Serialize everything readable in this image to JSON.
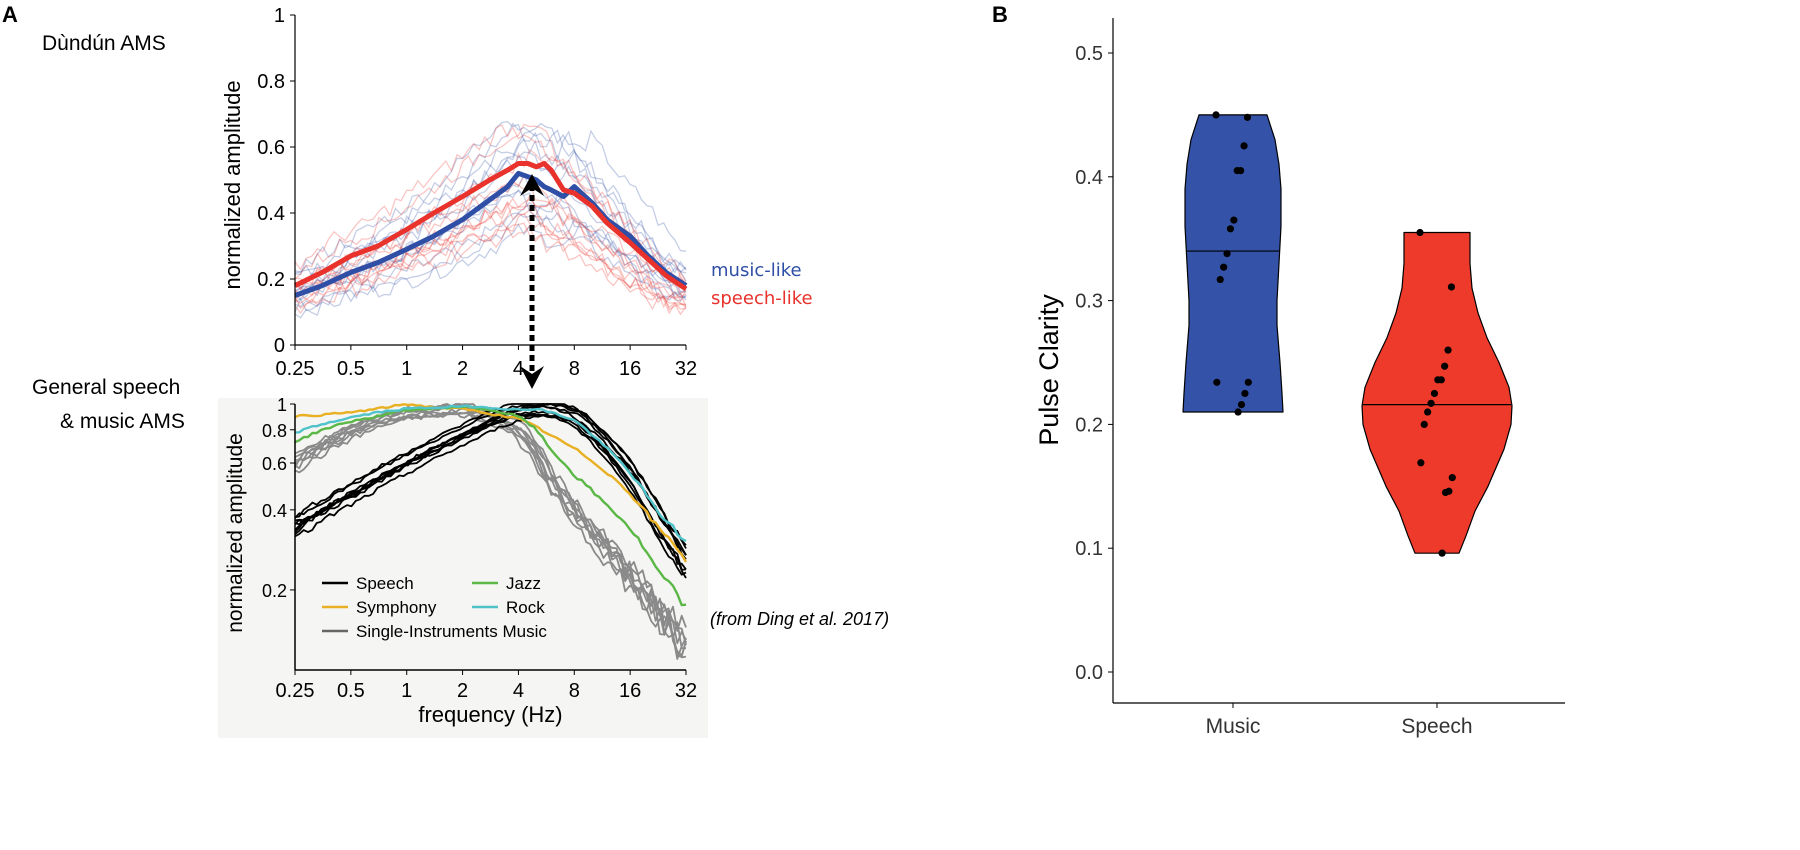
{
  "panel_a": {
    "letter": "A",
    "top_title": "Dùndún AMS",
    "bottom_title_line1": "General speech",
    "bottom_title_line2": "& music AMS",
    "citation": "(from Ding et al. 2017)"
  },
  "panel_b": {
    "letter": "B"
  },
  "colors": {
    "music": "#2f4fa6",
    "speech": "#e8322b",
    "violin_music_fill": "#3453a8",
    "violin_speech_fill": "#ee3a2a",
    "symphony": "#e8b022",
    "jazz": "#5bb746",
    "rock": "#4fc3c9",
    "single": "#8a8a8a"
  },
  "chart_data": [
    {
      "id": "dundun_ams",
      "type": "line",
      "title": "Dùndún AMS",
      "xlabel": "",
      "ylabel": "normalized amplitude",
      "xscale": "log2",
      "xlim": [
        0.25,
        32
      ],
      "ylim": [
        0,
        1
      ],
      "xticks": [
        "0.25",
        "0.5",
        "1",
        "2",
        "4",
        "8",
        "16",
        "32"
      ],
      "yticks": [
        "0",
        "0.2",
        "0.4",
        "0.6",
        "0.8",
        "1"
      ],
      "x": [
        0.25,
        0.35,
        0.5,
        0.7,
        1,
        1.4,
        2,
        2.8,
        3.5,
        4,
        4.5,
        5,
        5.5,
        6,
        7,
        8,
        10,
        12,
        16,
        20,
        25,
        32
      ],
      "series": [
        {
          "name": "music-like",
          "values": [
            0.15,
            0.18,
            0.22,
            0.25,
            0.29,
            0.33,
            0.38,
            0.44,
            0.48,
            0.52,
            0.51,
            0.5,
            0.48,
            0.47,
            0.45,
            0.48,
            0.43,
            0.38,
            0.33,
            0.27,
            0.22,
            0.18
          ]
        },
        {
          "name": "speech-like",
          "values": [
            0.18,
            0.22,
            0.27,
            0.3,
            0.35,
            0.4,
            0.45,
            0.5,
            0.53,
            0.55,
            0.55,
            0.54,
            0.55,
            0.53,
            0.47,
            0.46,
            0.42,
            0.37,
            0.31,
            0.26,
            0.21,
            0.17
          ]
        }
      ],
      "legend": [
        "music-like",
        "speech-like"
      ],
      "annotation": "dashed double-headed arrow at 4.5 Hz linking to lower panel"
    },
    {
      "id": "ding_ams",
      "type": "line",
      "title": "General speech & music AMS",
      "xlabel": "frequency (Hz)",
      "ylabel": "normalized amplitude",
      "xscale": "log2",
      "xlim": [
        0.25,
        32
      ],
      "ylim": [
        0.1,
        1
      ],
      "xticks": [
        "0.25",
        "0.5",
        "1",
        "2",
        "4",
        "8",
        "16",
        "32"
      ],
      "yticks": [
        "0.2",
        "0.4",
        "0.6",
        "0.8",
        "1"
      ],
      "x": [
        0.25,
        0.35,
        0.5,
        0.7,
        1,
        1.4,
        2,
        2.8,
        4,
        5,
        6,
        8,
        11,
        16,
        22,
        32
      ],
      "series": [
        {
          "name": "Speech",
          "values": [
            0.36,
            0.42,
            0.48,
            0.55,
            0.63,
            0.71,
            0.8,
            0.9,
            0.98,
            1.0,
            0.99,
            0.93,
            0.76,
            0.55,
            0.38,
            0.25
          ]
        },
        {
          "name": "Symphony",
          "values": [
            0.9,
            0.91,
            0.93,
            0.96,
            1.0,
            0.97,
            0.96,
            0.92,
            0.88,
            0.82,
            0.76,
            0.68,
            0.58,
            0.46,
            0.35,
            0.26
          ]
        },
        {
          "name": "Jazz",
          "values": [
            0.72,
            0.8,
            0.86,
            0.9,
            0.95,
            0.96,
            0.98,
            0.95,
            0.9,
            0.8,
            0.67,
            0.54,
            0.44,
            0.34,
            0.24,
            0.17
          ]
        },
        {
          "name": "Rock",
          "values": [
            0.78,
            0.84,
            0.89,
            0.93,
            0.96,
            0.97,
            0.98,
            0.97,
            0.95,
            0.96,
            0.93,
            0.87,
            0.72,
            0.55,
            0.4,
            0.3
          ]
        },
        {
          "name": "Single-Instruments Music",
          "values": [
            0.62,
            0.72,
            0.82,
            0.9,
            0.96,
            0.98,
            1.0,
            0.95,
            0.85,
            0.7,
            0.55,
            0.42,
            0.32,
            0.24,
            0.18,
            0.13
          ]
        }
      ],
      "legend": [
        "Speech",
        "Jazz",
        "Symphony",
        "Rock",
        "Single-Instruments Music"
      ]
    },
    {
      "id": "pulse_clarity",
      "type": "violin",
      "xlabel": "",
      "ylabel": "Pulse Clarity",
      "ylim": [
        0,
        0.5
      ],
      "yticks": [
        "0.0",
        "0.1",
        "0.2",
        "0.3",
        "0.4",
        "0.5"
      ],
      "categories": [
        "Music",
        "Speech"
      ],
      "groups": [
        {
          "name": "Music",
          "median": 0.34,
          "min": 0.21,
          "max": 0.45,
          "points": [
            0.45,
            0.448,
            0.425,
            0.405,
            0.405,
            0.365,
            0.358,
            0.338,
            0.327,
            0.317,
            0.234,
            0.234,
            0.225,
            0.216,
            0.21
          ]
        },
        {
          "name": "Speech",
          "median": 0.216,
          "min": 0.096,
          "max": 0.355,
          "points": [
            0.355,
            0.311,
            0.26,
            0.247,
            0.236,
            0.236,
            0.225,
            0.217,
            0.21,
            0.2,
            0.169,
            0.157,
            0.146,
            0.145,
            0.096
          ]
        }
      ]
    }
  ]
}
